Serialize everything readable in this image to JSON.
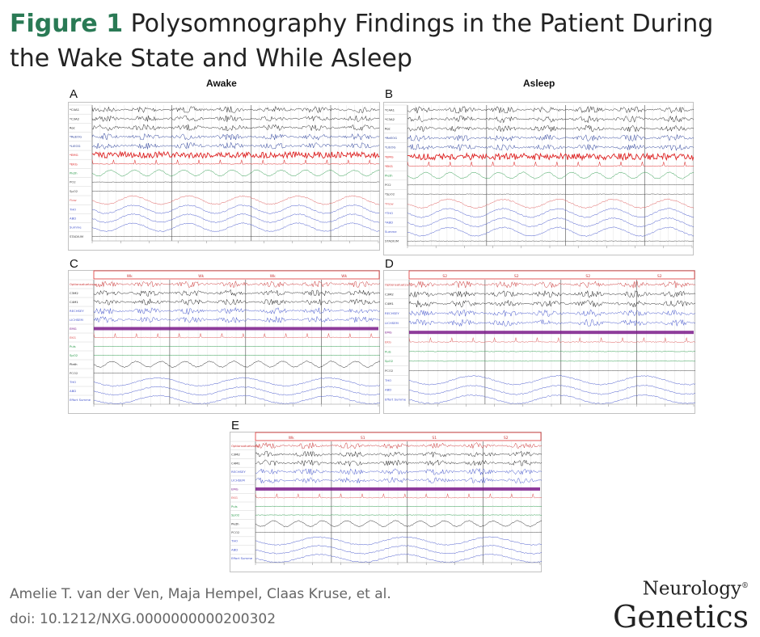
{
  "figure": {
    "number": "Figure 1",
    "title": "Polysomnography Findings in the Patient During the Wake State and While Asleep"
  },
  "column_labels": {
    "awake": "Awake",
    "asleep": "Asleep"
  },
  "panels": {
    "A": {
      "letter": "A",
      "channels": [
        "*C4A1",
        "*C3A2",
        "Roc",
        "*ReEOG",
        "*LiEOG",
        "*EMG",
        "*EKG",
        "Pleth",
        "PO2",
        "SpO2",
        "Flow",
        "THO",
        "ABD",
        "Summe",
        "STADIUM"
      ],
      "channel_colors": [
        "#222",
        "#222",
        "#222",
        "#2a3f9a",
        "#2a3f9a",
        "#d22",
        "#d22",
        "#2a9a4a",
        "#444",
        "#444",
        "#d55",
        "#4455cc",
        "#4455cc",
        "#4455cc",
        "#444"
      ]
    },
    "B": {
      "letter": "B",
      "channels": [
        "*C4A1",
        "*C3A2",
        "Roc",
        "*ReEOG",
        "*LiEOG",
        "*EMG",
        "*EKG",
        "Pleth",
        "PO2",
        "*SpO2",
        "*Flow",
        "*THO",
        "*ABD",
        "Summe",
        "STADIUM"
      ],
      "channel_colors": [
        "#222",
        "#222",
        "#222",
        "#2a3f9a",
        "#2a3f9a",
        "#d22",
        "#d22",
        "#2a9a4a",
        "#444",
        "#444",
        "#d55",
        "#4455cc",
        "#4455cc",
        "#4455cc",
        "#444"
      ]
    },
    "C": {
      "letter": "C",
      "channels": [
        "Optionsatuetzung",
        "C3M2",
        "C4M1",
        "RECHSEY",
        "LICHSEM",
        "EMG",
        "EKG",
        "Puls",
        "SpO2",
        "Pleth",
        "PCO2",
        "THO",
        "ABD",
        "Effort Summe"
      ],
      "channel_colors": [
        "#c33",
        "#222",
        "#222",
        "#4455cc",
        "#4455cc",
        "#7a1a8a",
        "#d55",
        "#2a9a4a",
        "#2a9a4a",
        "#222",
        "#444",
        "#4455cc",
        "#4455cc",
        "#4455cc"
      ],
      "epoch_labels": [
        "Wk",
        "Wk",
        "Wk",
        "Wk"
      ]
    },
    "D": {
      "letter": "D",
      "channels": [
        "Optionsatuetzung",
        "C3M2",
        "C4M1",
        "RECHSEY",
        "LICHSEM",
        "EMG",
        "EKG",
        "Puls",
        "SpO2",
        "PCO2",
        "THO",
        "ABD",
        "Effort Summe"
      ],
      "channel_colors": [
        "#c33",
        "#222",
        "#222",
        "#4455cc",
        "#4455cc",
        "#7a1a8a",
        "#d55",
        "#2a9a4a",
        "#2a9a4a",
        "#444",
        "#4455cc",
        "#4455cc",
        "#4455cc"
      ],
      "epoch_labels": [
        "S2",
        "S2",
        "S2",
        "S2"
      ]
    },
    "E": {
      "letter": "E",
      "channels": [
        "Optionsatuetzung",
        "C3M2",
        "C4M1",
        "RECHSEY",
        "LICHSEM",
        "EMG",
        "EKG",
        "Puls",
        "SpO2",
        "Pleth",
        "PCO2",
        "THO",
        "ABD",
        "Effort Summe"
      ],
      "channel_colors": [
        "#c33",
        "#222",
        "#222",
        "#4455cc",
        "#4455cc",
        "#7a1a8a",
        "#d55",
        "#2a9a4a",
        "#2a9a4a",
        "#222",
        "#444",
        "#4455cc",
        "#4455cc",
        "#4455cc"
      ],
      "epoch_labels": [
        "Wk",
        "S1",
        "S1",
        "S2"
      ]
    }
  },
  "credits": {
    "authors": "Amelie T. van der Ven, Maja Hempel, Claas Kruse, et al.",
    "doi": "doi: 10.1212/NXG.0000000000200302"
  },
  "journal": {
    "line1": "Neurology",
    "mark": "®",
    "line2": "Genetics"
  }
}
